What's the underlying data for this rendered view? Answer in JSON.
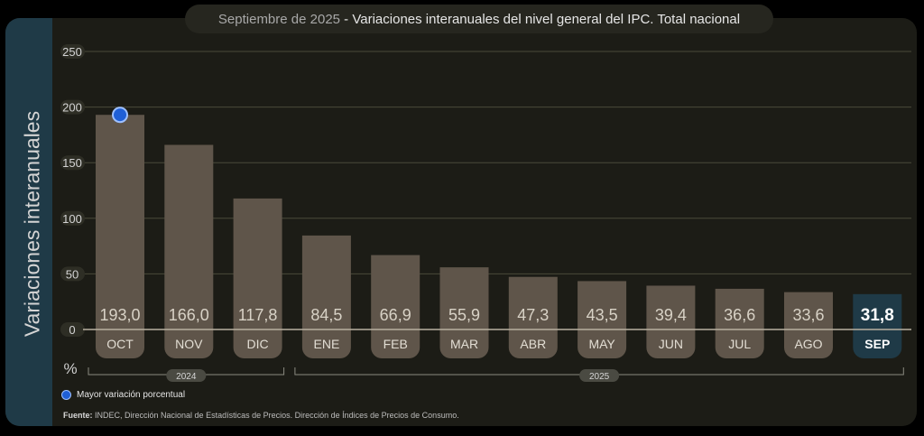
{
  "title": {
    "prefix": "Septiembre de 2025",
    "separator": " - ",
    "main": "Variaciones interanuales del nivel general del IPC. Total nacional"
  },
  "side_label": "Variaciones interanuales",
  "unit": "%",
  "legend": {
    "highlight_label": "Mayor variación porcentual"
  },
  "source": {
    "label": "Fuente:",
    "text": "INDEC, Dirección Nacional de Estadísticas de Precios. Dirección de Índices de Precios de Consumo."
  },
  "colors": {
    "bar": "#5f554a",
    "bar_current": "#1f3a47",
    "marker": "#1f5fd6",
    "grid": "#4a4a3a",
    "text": "#d8d2c6"
  },
  "chart_data": {
    "type": "bar",
    "categories": [
      "OCT",
      "NOV",
      "DIC",
      "ENE",
      "FEB",
      "MAR",
      "ABR",
      "MAY",
      "JUN",
      "JUL",
      "AGO",
      "SEP"
    ],
    "values": [
      193.0,
      166.0,
      117.8,
      84.5,
      66.9,
      55.9,
      47.3,
      43.5,
      39.4,
      36.6,
      33.6,
      31.8
    ],
    "value_labels": [
      "193,0",
      "166,0",
      "117,8",
      "84,5",
      "66,9",
      "55,9",
      "47,3",
      "43,5",
      "39,4",
      "36,6",
      "33,6",
      "31,8"
    ],
    "ylabel": "Variaciones interanuales",
    "ylim": [
      0,
      250
    ],
    "yticks": [
      0,
      50,
      100,
      150,
      200,
      250
    ],
    "grid": true,
    "highlight_index": 0,
    "current_index": 11,
    "year_groups": [
      {
        "label": "2024",
        "start": 0,
        "end": 2
      },
      {
        "label": "2025",
        "start": 3,
        "end": 11
      }
    ]
  }
}
